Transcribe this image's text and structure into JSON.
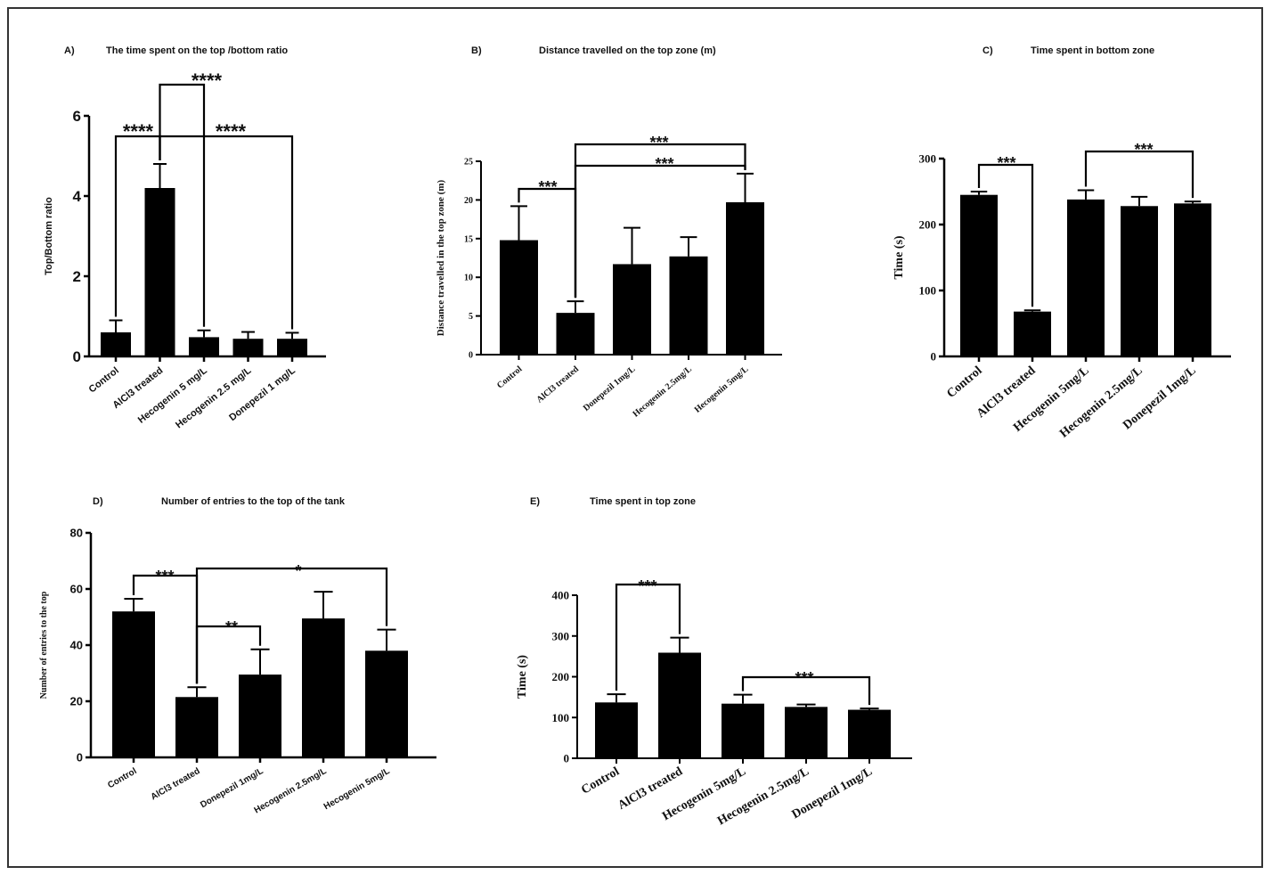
{
  "figure": {
    "panels": [
      {
        "letter": "A)",
        "title": "The time spent on the top /bottom ratio"
      },
      {
        "letter": "B)",
        "title": "Distance travelled on the top zone (m)"
      },
      {
        "letter": "C)",
        "title": "Time spent in bottom zone"
      },
      {
        "letter": "D)",
        "title": "Number of entries to the top of the tank"
      },
      {
        "letter": "E)",
        "title": "Time spent in top zone"
      }
    ]
  },
  "chart_data": [
    {
      "type": "bar",
      "panel": "A)",
      "title": "The time spent on the top /bottom ratio",
      "xlabel": "",
      "ylabel": "Top/Bottom ratio",
      "ylim": [
        0,
        6
      ],
      "yticks": [
        0,
        2,
        4,
        6
      ],
      "categories": [
        "Control",
        "AlCl3 treated",
        "Hecogenin 5 mg/L",
        "Hecogenin  2.5 mg/L",
        "Donepezil 1 mg/L"
      ],
      "values": [
        0.6,
        4.2,
        0.48,
        0.44,
        0.44
      ],
      "errors": [
        0.3,
        0.6,
        0.17,
        0.17,
        0.15
      ],
      "significance": [
        {
          "from": 0,
          "to": 1,
          "label": "****"
        },
        {
          "from": 1,
          "to": 2,
          "label": "****"
        },
        {
          "from": 1,
          "to": 4,
          "label": "****"
        }
      ]
    },
    {
      "type": "bar",
      "panel": "B)",
      "title": "Distance travelled on the top zone (m)",
      "xlabel": "",
      "ylabel": "Distance travelled in the top zone (m)",
      "ylim": [
        0,
        25
      ],
      "yticks": [
        0,
        5,
        10,
        15,
        20,
        25
      ],
      "categories": [
        "Control",
        "AlCl3 treated",
        "Donepezil 1mg/L",
        "Hecogenin 2.5mg/L",
        "Hecogenin 5mg/L"
      ],
      "values": [
        14.8,
        5.4,
        11.7,
        12.7,
        19.7
      ],
      "errors": [
        4.4,
        1.5,
        4.7,
        2.5,
        3.7
      ],
      "significance": [
        {
          "from": 0,
          "to": 1,
          "label": "***"
        },
        {
          "from": 1,
          "to": 4,
          "label": "***"
        },
        {
          "from": 1,
          "to": 4,
          "label": "***"
        }
      ]
    },
    {
      "type": "bar",
      "panel": "C)",
      "title": "Time spent in bottom zone",
      "xlabel": "",
      "ylabel": "Time (s)",
      "ylim": [
        0,
        300
      ],
      "yticks": [
        0,
        100,
        200,
        300
      ],
      "categories": [
        "Control",
        "AlCl3 treated",
        "Hecogenin 5mg/L",
        "Hecogenin 2.5mg/L",
        "Donepezil 1mg/L"
      ],
      "values": [
        245,
        68,
        238,
        228,
        232
      ],
      "errors": [
        5,
        2,
        14,
        14,
        3
      ],
      "significance": [
        {
          "from": 0,
          "to": 1,
          "label": "***"
        },
        {
          "from": 2,
          "to": 4,
          "label": "***"
        }
      ]
    },
    {
      "type": "bar",
      "panel": "D)",
      "title": "Number of entries to the top of the tank",
      "xlabel": "",
      "ylabel": "Number of entries to the top",
      "ylim": [
        0,
        80
      ],
      "yticks": [
        0,
        20,
        40,
        60,
        80
      ],
      "categories": [
        "Control",
        "AlCl3 treated",
        "Donepezil 1mg/L",
        "Hecogenin 2.5mg/L",
        "Hecogenin 5mg/L"
      ],
      "values": [
        52,
        21.5,
        29.5,
        49.5,
        38
      ],
      "errors": [
        4.5,
        3.5,
        9,
        9.5,
        7.5
      ],
      "significance": [
        {
          "from": 0,
          "to": 1,
          "label": "***"
        },
        {
          "from": 1,
          "to": 2,
          "label": "**"
        },
        {
          "from": 1,
          "to": 4,
          "label": "*"
        }
      ]
    },
    {
      "type": "bar",
      "panel": "E)",
      "title": "Time spent in top zone",
      "xlabel": "",
      "ylabel": "Time (s)",
      "ylim": [
        0,
        400
      ],
      "yticks": [
        0,
        100,
        200,
        300,
        400
      ],
      "categories": [
        "Control",
        "AlCl3 treated",
        "Hecogenin 5mg/L",
        "Hecogenin 2.5mg/L",
        "Donepezil 1mg/L"
      ],
      "values": [
        137,
        259,
        134,
        126,
        119
      ],
      "errors": [
        20,
        37,
        22,
        6,
        3
      ],
      "significance": [
        {
          "from": 0,
          "to": 1,
          "label": "***"
        },
        {
          "from": 2,
          "to": 4,
          "label": "***"
        }
      ]
    }
  ]
}
